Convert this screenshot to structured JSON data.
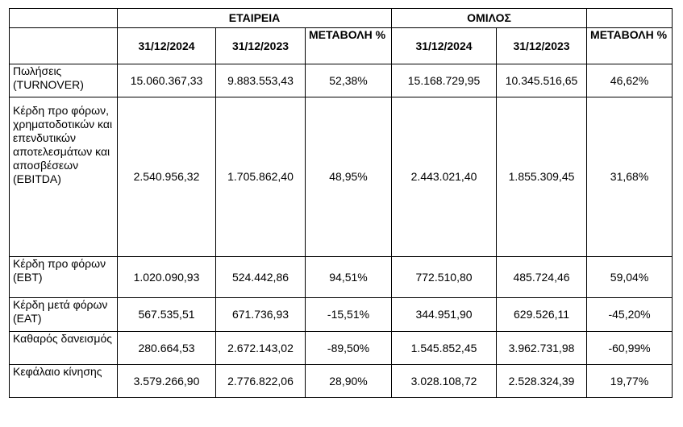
{
  "groups": {
    "company": "ΕΤΑΙΡΕΙΑ",
    "group": "ΟΜΙΛΟΣ"
  },
  "columns": {
    "company": {
      "date_2024": "31/12/2024",
      "date_2023": "31/12/2023",
      "change": "ΜΕΤΑΒΟΛΗ %"
    },
    "group": {
      "date_2024": "31/12/2024",
      "date_2023": "31/12/2023",
      "change": "ΜΕΤΑΒΟΛΗ %"
    }
  },
  "rows": [
    {
      "label": "Πωλήσεις (TURNOVER)",
      "company": [
        "15.060.367,33",
        "9.883.553,43",
        "52,38%"
      ],
      "group": [
        "15.168.729,95",
        "10.345.516,65",
        "46,62%"
      ]
    },
    {
      "label": "Κέρδη προ φόρων, χρηματοδοτικών και επενδυτικών αποτελεσμάτων και αποσβέσεων (EBITDA)",
      "company": [
        "2.540.956,32",
        "1.705.862,40",
        "48,95%"
      ],
      "group": [
        "2.443.021,40",
        "1.855.309,45",
        "31,68%"
      ]
    },
    {
      "label": "Κέρδη προ φόρων (EBT)",
      "company": [
        "1.020.090,93",
        "524.442,86",
        "94,51%"
      ],
      "group": [
        "772.510,80",
        "485.724,46",
        "59,04%"
      ]
    },
    {
      "label": "Κέρδη μετά φόρων (EAT)",
      "company": [
        "567.535,51",
        "671.736,93",
        "-15,51%"
      ],
      "group": [
        "344.951,90",
        "629.526,11",
        "-45,20%"
      ]
    },
    {
      "label": "Καθαρός δανεισμός",
      "company": [
        "280.664,53",
        "2.672.143,02",
        "-89,50%"
      ],
      "group": [
        "1.545.852,45",
        "3.962.731,98",
        "-60,99%"
      ]
    },
    {
      "label": "Κεφάλαιο κίνησης",
      "company": [
        "3.579.266,90",
        "2.776.822,06",
        "28,90%"
      ],
      "group": [
        "3.028.108,72",
        "2.528.324,39",
        "19,77%"
      ]
    }
  ]
}
